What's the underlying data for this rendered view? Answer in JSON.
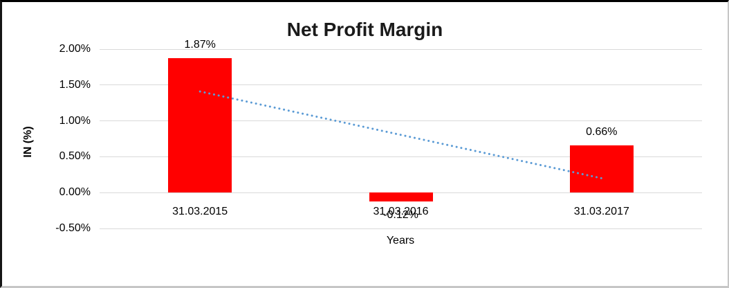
{
  "chart_data": {
    "type": "bar",
    "title": "Net Profit Margin",
    "xlabel": "Years",
    "ylabel": "IN (%)",
    "categories": [
      "31.03.2015",
      "31.03.2016",
      "31.03.2017"
    ],
    "series": [
      {
        "name": "Net Profit Margin",
        "values": [
          1.87,
          -0.12,
          0.66
        ],
        "labels": [
          "1.87%",
          "-0.12%",
          "0.66%"
        ],
        "color": "#ff0000"
      }
    ],
    "y_ticks": [
      {
        "label": "2.00%",
        "value": 2.0
      },
      {
        "label": "1.50%",
        "value": 1.5
      },
      {
        "label": "1.00%",
        "value": 1.0
      },
      {
        "label": "0.50%",
        "value": 0.5
      },
      {
        "label": "0.00%",
        "value": 0.0
      },
      {
        "label": "-0.50%",
        "value": -0.5
      }
    ],
    "ylim": [
      -0.5,
      2.0
    ],
    "grid": true,
    "legend_position": "none",
    "colors": {
      "bar": "#ff0000",
      "gridline": "#d9d9d9",
      "trendline": "#5b9bd5",
      "text": "#000000",
      "title": "#1a1a1a"
    },
    "trendline": {
      "type": "linear",
      "style": "dotted",
      "color": "#5b9bd5",
      "start_value": 1.41,
      "end_value": 0.2
    }
  }
}
